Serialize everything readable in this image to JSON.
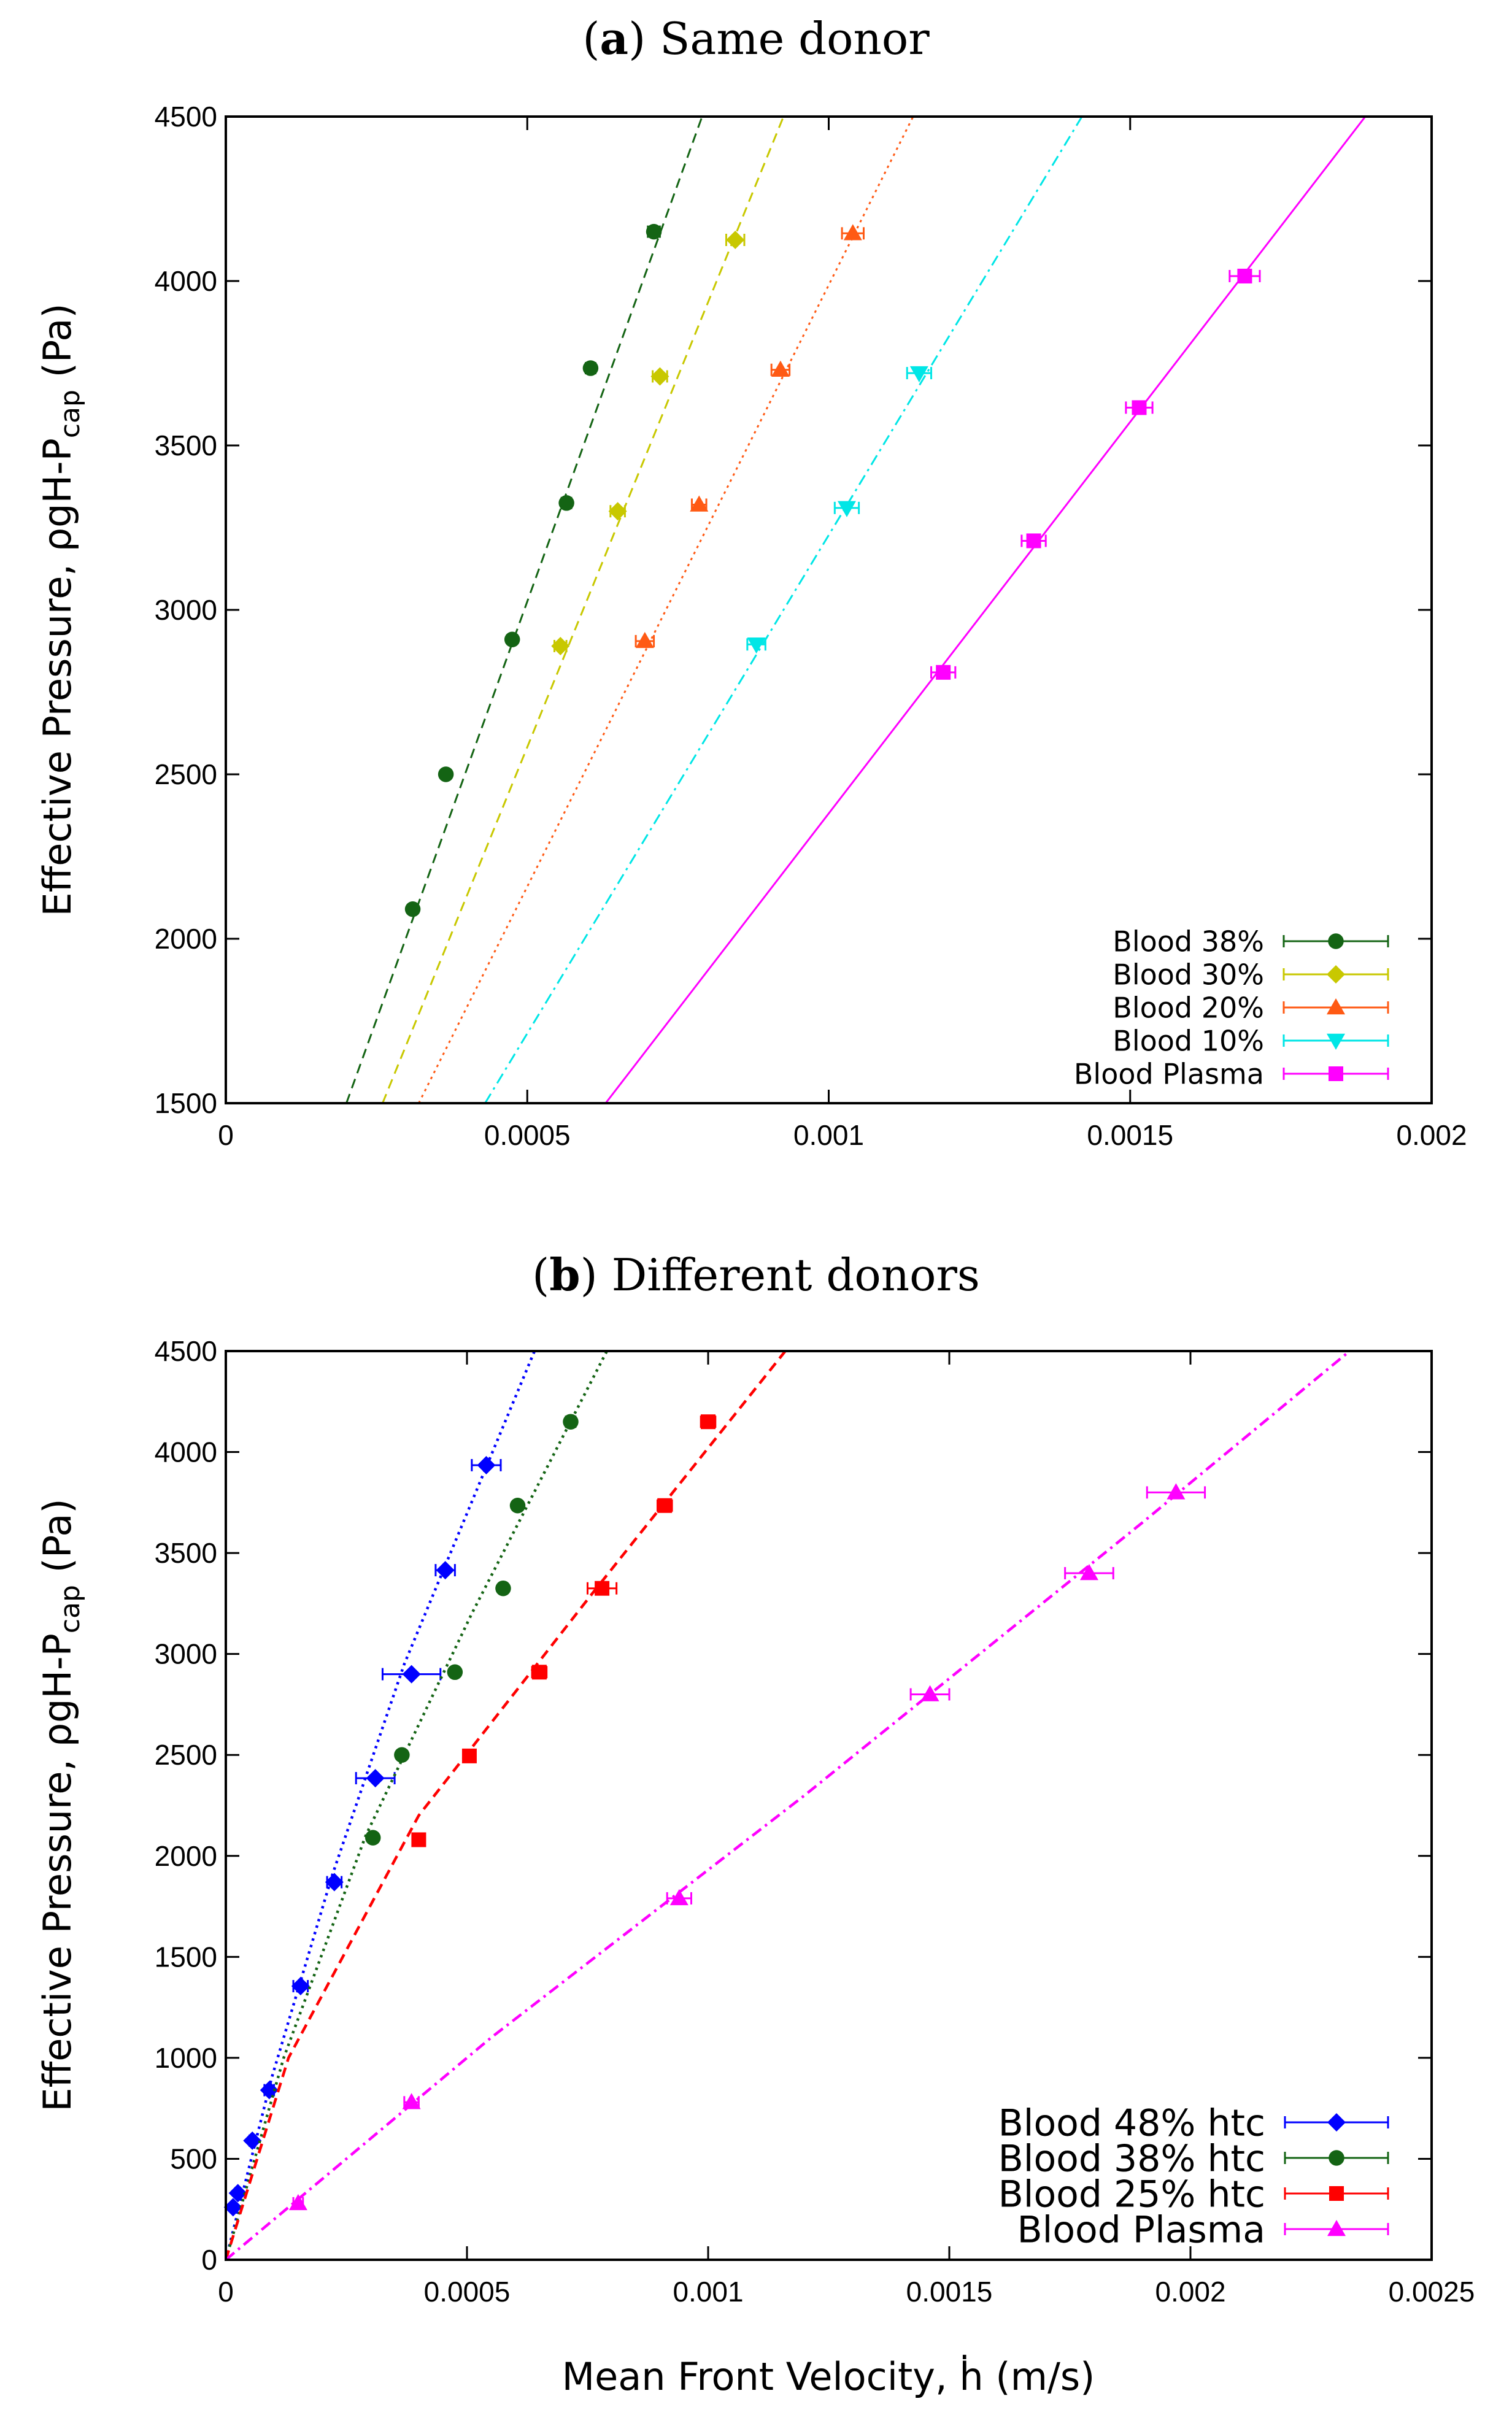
{
  "chart_data": [
    {
      "type": "line",
      "panel_label": "a",
      "title_rest": "Same donor",
      "ylabel": "Effective Pressure, ρgH-P",
      "ylabel_sub": "cap",
      "ylabel_tail": " (Pa)",
      "xlabel": "",
      "xlim": [
        0,
        0.002
      ],
      "ylim": [
        1500,
        4500
      ],
      "xticks": [
        0,
        0.0005,
        0.001,
        0.0015,
        0.002
      ],
      "xtick_labels": [
        "0",
        "0.0005",
        "0.001",
        "0.0015",
        "0.002"
      ],
      "yticks": [
        1500,
        2000,
        2500,
        3000,
        3500,
        4000,
        4500
      ],
      "ytick_labels": [
        "1500",
        "2000",
        "2500",
        "3000",
        "3500",
        "4000",
        "4500"
      ],
      "legend_position": "bottom-right",
      "series": [
        {
          "name": "Blood 38%",
          "color": "#146414",
          "marker": "circle",
          "line_style": "dashed",
          "x": [
            0.00031,
            0.000365,
            0.000475,
            0.000565,
            0.000605,
            0.00071
          ],
          "y": [
            2090,
            2500,
            2910,
            3325,
            3735,
            4150
          ],
          "xerr": [
            5e-06,
            5e-06,
            6e-06,
            8e-06,
            8e-06,
            1e-05
          ],
          "fit": [
            [
              0.0002,
              1500
            ],
            [
              0.00079,
              4500
            ]
          ]
        },
        {
          "name": "Blood 30%",
          "color": "#c8c800",
          "marker": "diamond",
          "line_style": "dashed",
          "x": [
            0.000555,
            0.00065,
            0.00072,
            0.000845
          ],
          "y": [
            2890,
            3300,
            3710,
            4125
          ],
          "xerr": [
            1e-05,
            1.2e-05,
            1.2e-05,
            1.5e-05
          ],
          "fit": [
            [
              0.00026,
              1500
            ],
            [
              0.000925,
              4500
            ]
          ]
        },
        {
          "name": "Blood 20%",
          "color": "#ff5a14",
          "marker": "triangle-up",
          "line_style": "dotted",
          "x": [
            0.000695,
            0.000785,
            0.00092,
            0.00104
          ],
          "y": [
            2905,
            3320,
            3730,
            4145
          ],
          "xerr": [
            1.5e-05,
            1.2e-05,
            1.5e-05,
            1.8e-05
          ],
          "fit": [
            [
              0.00032,
              1500
            ],
            [
              0.00114,
              4500
            ]
          ]
        },
        {
          "name": "Blood 10%",
          "color": "#00e6e6",
          "marker": "triangle-down",
          "line_style": "dash-dot",
          "x": [
            0.00088,
            0.00103,
            0.00115
          ],
          "y": [
            2895,
            3310,
            3720
          ],
          "xerr": [
            1.5e-05,
            2e-05,
            2e-05
          ],
          "fit": [
            [
              0.00043,
              1500
            ],
            [
              0.00142,
              4500
            ]
          ]
        },
        {
          "name": "Blood Plasma",
          "color": "#ff00ff",
          "marker": "square",
          "line_style": "solid",
          "x": [
            0.00119,
            0.00134,
            0.001515,
            0.00169
          ],
          "y": [
            2810,
            3210,
            3615,
            4015
          ],
          "xerr": [
            2e-05,
            2e-05,
            2.2e-05,
            2.5e-05
          ],
          "fit": [
            [
              0.00063,
              1500
            ],
            [
              0.00189,
              4500
            ]
          ]
        }
      ]
    },
    {
      "type": "line",
      "panel_label": "b",
      "title_rest": "Different donors",
      "ylabel": "Effective Pressure, ρgH-P",
      "ylabel_sub": "cap",
      "ylabel_tail": " (Pa)",
      "xlabel": "Mean Front Velocity, ḣ (m/s)",
      "xlim": [
        0,
        0.0025
      ],
      "ylim": [
        0,
        4500
      ],
      "xticks": [
        0,
        0.0005,
        0.001,
        0.0015,
        0.002,
        0.0025
      ],
      "xtick_labels": [
        "0",
        "0.0005",
        "0.001",
        "0.0015",
        "0.002",
        "0.0025"
      ],
      "yticks": [
        0,
        500,
        1000,
        1500,
        2000,
        2500,
        3000,
        3500,
        4000,
        4500
      ],
      "ytick_labels": [
        "0",
        "500",
        "1000",
        "1500",
        "2000",
        "2500",
        "3000",
        "3500",
        "4000",
        "4500"
      ],
      "legend_position": "bottom-right",
      "series": [
        {
          "name": "Blood 48% htc",
          "color": "#0000ff",
          "marker": "diamond",
          "line_style": "dotted",
          "x": [
            1.5e-05,
            2.5e-05,
            5.5e-05,
            9e-05,
            0.000155,
            0.000225,
            0.00031,
            0.000385,
            0.000455,
            0.00054
          ],
          "y": [
            260,
            330,
            590,
            840,
            1355,
            1870,
            2385,
            2900,
            3415,
            3935
          ],
          "xerr": [
            5e-06,
            5e-06,
            6e-06,
            1e-05,
            1.5e-05,
            1.5e-05,
            4e-05,
            6e-05,
            2e-05,
            3e-05
          ],
          "fit": [
            [
              0,
              0
            ],
            [
              9.5e-05,
              900
            ],
            [
              0.00022,
              1900
            ],
            [
              0.00037,
              2950
            ],
            [
              0.00064,
              4500
            ]
          ]
        },
        {
          "name": "Blood 38% htc",
          "color": "#146414",
          "marker": "circle",
          "line_style": "dotted",
          "x": [
            0.000305,
            0.000365,
            0.000475,
            0.000575,
            0.000605,
            0.000715
          ],
          "y": [
            2090,
            2500,
            2910,
            3325,
            3735,
            4150
          ],
          "xerr": [
            5e-06,
            5e-06,
            6e-06,
            8e-06,
            8e-06,
            1e-05
          ],
          "fit": [
            [
              0,
              0
            ],
            [
              0.00012,
              1000
            ],
            [
              0.00029,
              2100
            ],
            [
              0.00051,
              3200
            ],
            [
              0.00079,
              4500
            ]
          ]
        },
        {
          "name": "Blood 25% htc",
          "color": "#ff0000",
          "marker": "square",
          "line_style": "dashed",
          "x": [
            0.0004,
            0.000505,
            0.00065,
            0.00078,
            0.00091,
            0.001
          ],
          "y": [
            2080,
            2495,
            2910,
            3325,
            3735,
            4150
          ],
          "xerr": [
            1e-05,
            1e-05,
            1.5e-05,
            3e-05,
            1.5e-05,
            1.5e-05
          ],
          "fit": [
            [
              0,
              0
            ],
            [
              0.00013,
              1000
            ],
            [
              0.0004,
              2200
            ],
            [
              0.00076,
              3300
            ],
            [
              0.00116,
              4500
            ]
          ]
        },
        {
          "name": "Blood Plasma",
          "color": "#ff00ff",
          "marker": "triangle-up",
          "line_style": "dash-dot",
          "x": [
            0.00015,
            0.000385,
            0.00094,
            0.00146,
            0.00179,
            0.00197
          ],
          "y": [
            280,
            780,
            1790,
            2800,
            3400,
            3800
          ],
          "xerr": [
            1e-05,
            1.5e-05,
            2.5e-05,
            4e-05,
            5e-05,
            6e-05
          ],
          "fit": [
            [
              0,
              0
            ],
            [
              0.00055,
              1100
            ],
            [
              0.0012,
              2300
            ],
            [
              0.0019,
              3650
            ],
            [
              0.00233,
              4500
            ]
          ]
        }
      ]
    }
  ]
}
